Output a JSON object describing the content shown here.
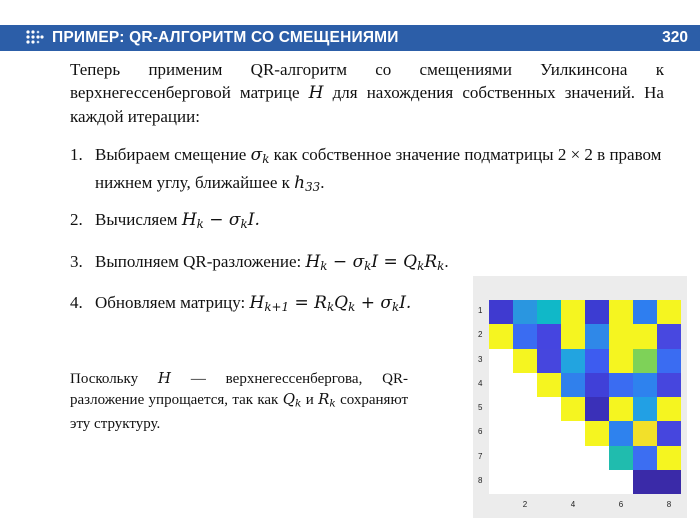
{
  "header": {
    "title": "ПРИМЕР: QR-АЛГОРИТМ СО СМЕЩЕНИЯМИ",
    "page_number": "320",
    "icon": "dots-arrow-icon",
    "bar_color": "#2c5ea8"
  },
  "intro": {
    "text_before": "Теперь применим QR-алгоритм со смещениями Уилкинсона к верхнегессенберговой матрице ",
    "var": "H",
    "text_after": " для нахождения собственных значений. На каждой итерации:"
  },
  "steps": [
    {
      "num": "1.",
      "text1": "Выбираем смещение ",
      "sigma": "σ",
      "sigma_sub": "k",
      "text2": " как собственное значение подматрицы 2 × 2 в правом нижнем углу, ближайшее к ",
      "h": "h",
      "h_sub": "33",
      "end": "."
    },
    {
      "num": "2.",
      "text": "Вычисляем ",
      "formula": "H",
      "formula_sub": "k",
      "formula_rest": " − σ",
      "formula_rest_sub": "k",
      "formula_end": "I."
    },
    {
      "num": "3.",
      "text": "Выполняем QR-разложение: ",
      "a": "H",
      "a_sub": "k",
      "b": " − σ",
      "b_sub": "k",
      "c": "I = Q",
      "c_sub": "k",
      "d": "R",
      "d_sub": "k",
      "end": "."
    },
    {
      "num": "4.",
      "text": "Обновляем матрицу: ",
      "a": "H",
      "a_sub": "k+1",
      "b": " = R",
      "b_sub": "k",
      "c": "Q",
      "c_sub": "k",
      "d": " + σ",
      "d_sub": "k",
      "end": "I."
    }
  ],
  "note": {
    "t1": "Поскольку ",
    "v1": "H",
    "t2": " — верхнегессенбергова, QR-разложение упрощается, так как ",
    "v2": "Q",
    "v2_sub": "k",
    "t3": " и ",
    "v3": "R",
    "v3_sub": "k",
    "t4": " сохраняют эту структуру."
  },
  "chart_data": {
    "type": "heatmap",
    "rows": [
      1,
      2,
      3,
      4,
      5,
      6,
      7,
      8
    ],
    "cols": [
      1,
      2,
      3,
      4,
      5,
      6,
      7,
      8
    ],
    "x_ticks": [
      "2",
      "4",
      "6",
      "8"
    ],
    "y_ticks": [
      "1",
      "2",
      "3",
      "4",
      "5",
      "6",
      "7",
      "8"
    ],
    "cells": [
      [
        "#3f3ad0",
        "#2a96e0",
        "#10b8c8",
        "#f5f520",
        "#3c3cd2",
        "#f5f520",
        "#2e7ef0",
        "#f5f520"
      ],
      [
        "#f5f520",
        "#3a6cf2",
        "#4545e0",
        "#f5f520",
        "#2f88e8",
        "#f5f520",
        "#f5f520",
        "#4848e0"
      ],
      [
        null,
        "#f5f520",
        "#4646de",
        "#22a4e0",
        "#3d5cf0",
        "#f5f520",
        "#7ed258",
        "#3a6cf2"
      ],
      [
        null,
        null,
        "#f5f520",
        "#3080ec",
        "#4040d8",
        "#3a6cf2",
        "#2e82ee",
        "#4646de"
      ],
      [
        null,
        null,
        null,
        "#f5f520",
        "#3a30b8",
        "#f5f520",
        "#22a0e4",
        "#f5f520"
      ],
      [
        null,
        null,
        null,
        null,
        "#f5f520",
        "#2e82ee",
        "#f2e02a",
        "#4646de"
      ],
      [
        null,
        null,
        null,
        null,
        null,
        "#20bcae",
        "#3c6ef2",
        "#f5f520"
      ],
      [
        null,
        null,
        null,
        null,
        null,
        null,
        "#3a2aa8",
        "#3a2aa8"
      ]
    ]
  }
}
